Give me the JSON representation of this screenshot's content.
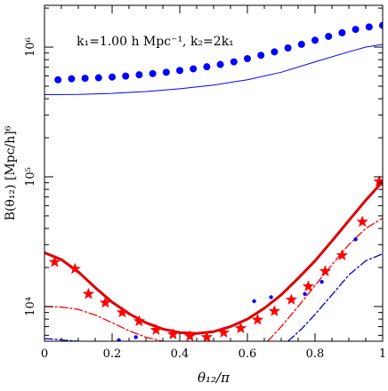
{
  "chart_data": {
    "type": "scatter",
    "title": "",
    "annotation": "k₁=1.00 h Mpc⁻¹, k₂=2k₁",
    "xlabel": "θ₁₂/π",
    "ylabel": "B(θ₁₂) [Mpc/h]⁶",
    "xlim": [
      0,
      1
    ],
    "ylim": [
      5400,
      2100000
    ],
    "yscale": "log",
    "x_ticks": [
      {
        "value": 0,
        "label": "0"
      },
      {
        "value": 0.2,
        "label": "0.2"
      },
      {
        "value": 0.4,
        "label": "0.4"
      },
      {
        "value": 0.6,
        "label": "0.6"
      },
      {
        "value": 0.8,
        "label": "0.8"
      },
      {
        "value": 1,
        "label": "1"
      }
    ],
    "y_ticks": [
      {
        "value": 10000,
        "label": "10⁴"
      },
      {
        "value": 100000,
        "label": "10⁵"
      },
      {
        "value": 1000000,
        "label": "10⁶"
      }
    ],
    "colors": {
      "blue": "#0000ff",
      "red": "#ff0000",
      "dark_blue": "#0000cc",
      "dark_red": "#dd0000"
    },
    "series": [
      {
        "style": "dots",
        "color": "#0000ff",
        "points": [
          [
            0.04,
            560000
          ],
          [
            0.08,
            570000
          ],
          [
            0.12,
            575000
          ],
          [
            0.16,
            580000
          ],
          [
            0.2,
            588000
          ],
          [
            0.24,
            598000
          ],
          [
            0.28,
            612000
          ],
          [
            0.32,
            625000
          ],
          [
            0.36,
            640000
          ],
          [
            0.4,
            660000
          ],
          [
            0.44,
            680000
          ],
          [
            0.48,
            705000
          ],
          [
            0.52,
            735000
          ],
          [
            0.56,
            770000
          ],
          [
            0.6,
            815000
          ],
          [
            0.64,
            865000
          ],
          [
            0.68,
            920000
          ],
          [
            0.72,
            985000
          ],
          [
            0.76,
            1050000
          ],
          [
            0.8,
            1130000
          ],
          [
            0.84,
            1210000
          ],
          [
            0.88,
            1290000
          ],
          [
            0.92,
            1370000
          ],
          [
            0.96,
            1430000
          ],
          [
            1.0,
            1470000
          ]
        ]
      },
      {
        "style": "line",
        "color": "#0000ff",
        "points": [
          [
            0,
            430000
          ],
          [
            0.1,
            432000
          ],
          [
            0.2,
            440000
          ],
          [
            0.3,
            455000
          ],
          [
            0.4,
            478000
          ],
          [
            0.5,
            510000
          ],
          [
            0.6,
            560000
          ],
          [
            0.7,
            640000
          ],
          [
            0.8,
            770000
          ],
          [
            0.9,
            920000
          ],
          [
            0.95,
            1000000
          ],
          [
            1.0,
            1050000
          ]
        ]
      },
      {
        "style": "thick-line",
        "color": "#dd0000",
        "points": [
          [
            0,
            26000
          ],
          [
            0.05,
            23000
          ],
          [
            0.1,
            18500
          ],
          [
            0.15,
            14000
          ],
          [
            0.2,
            10800
          ],
          [
            0.25,
            8800
          ],
          [
            0.3,
            7500
          ],
          [
            0.35,
            6700
          ],
          [
            0.4,
            6300
          ],
          [
            0.45,
            6200
          ],
          [
            0.5,
            6400
          ],
          [
            0.55,
            7000
          ],
          [
            0.6,
            8000
          ],
          [
            0.65,
            9700
          ],
          [
            0.7,
            12300
          ],
          [
            0.75,
            16500
          ],
          [
            0.8,
            22500
          ],
          [
            0.85,
            32000
          ],
          [
            0.9,
            46000
          ],
          [
            0.95,
            66000
          ],
          [
            1.0,
            92000
          ]
        ]
      },
      {
        "style": "stars",
        "color": "#ff0000",
        "points": [
          [
            0.03,
            22000
          ],
          [
            0.09,
            19500
          ],
          [
            0.13,
            12500
          ],
          [
            0.18,
            10700
          ],
          [
            0.23,
            9000
          ],
          [
            0.28,
            7700
          ],
          [
            0.33,
            6600
          ],
          [
            0.38,
            6100
          ],
          [
            0.43,
            5900
          ],
          [
            0.48,
            5800
          ],
          [
            0.53,
            6300
          ],
          [
            0.58,
            6800
          ],
          [
            0.63,
            7900
          ],
          [
            0.68,
            9200
          ],
          [
            0.73,
            11300
          ],
          [
            0.78,
            14300
          ],
          [
            0.83,
            18700
          ],
          [
            0.88,
            24800
          ],
          [
            0.94,
            45000
          ],
          [
            0.99,
            92000
          ]
        ]
      },
      {
        "style": "dash-dot",
        "color": "#ff0000",
        "points": [
          [
            0,
            10000
          ],
          [
            0.05,
            9900
          ],
          [
            0.1,
            9500
          ],
          [
            0.15,
            8600
          ],
          [
            0.2,
            7500
          ],
          [
            0.25,
            6500
          ],
          [
            0.3,
            5800
          ],
          [
            0.35,
            5400
          ]
        ]
      },
      {
        "style": "dash-dot",
        "color": "#ff0000",
        "points": [
          [
            0.66,
            5400
          ],
          [
            0.7,
            7000
          ],
          [
            0.75,
            10000
          ],
          [
            0.8,
            14500
          ],
          [
            0.85,
            21000
          ],
          [
            0.9,
            30000
          ],
          [
            0.95,
            40000
          ],
          [
            1.0,
            48000
          ]
        ]
      },
      {
        "style": "dots-small",
        "color": "#0000ff",
        "points": [
          [
            0.22,
            5500
          ],
          [
            0.27,
            5800
          ],
          [
            0.62,
            11000
          ],
          [
            0.67,
            11800
          ],
          [
            0.77,
            12500
          ],
          [
            0.82,
            15500
          ],
          [
            0.92,
            33000
          ]
        ]
      },
      {
        "style": "dash-dot",
        "color": "#0000cc",
        "points": [
          [
            0,
            5650
          ],
          [
            0.03,
            5600
          ],
          [
            0.06,
            5500
          ],
          [
            0.1,
            5400
          ]
        ]
      },
      {
        "style": "dash-dot",
        "color": "#0000cc",
        "points": [
          [
            0.72,
            5400
          ],
          [
            0.76,
            6700
          ],
          [
            0.8,
            8700
          ],
          [
            0.85,
            12300
          ],
          [
            0.9,
            17500
          ],
          [
            0.95,
            22500
          ],
          [
            1.0,
            25500
          ]
        ]
      }
    ]
  }
}
